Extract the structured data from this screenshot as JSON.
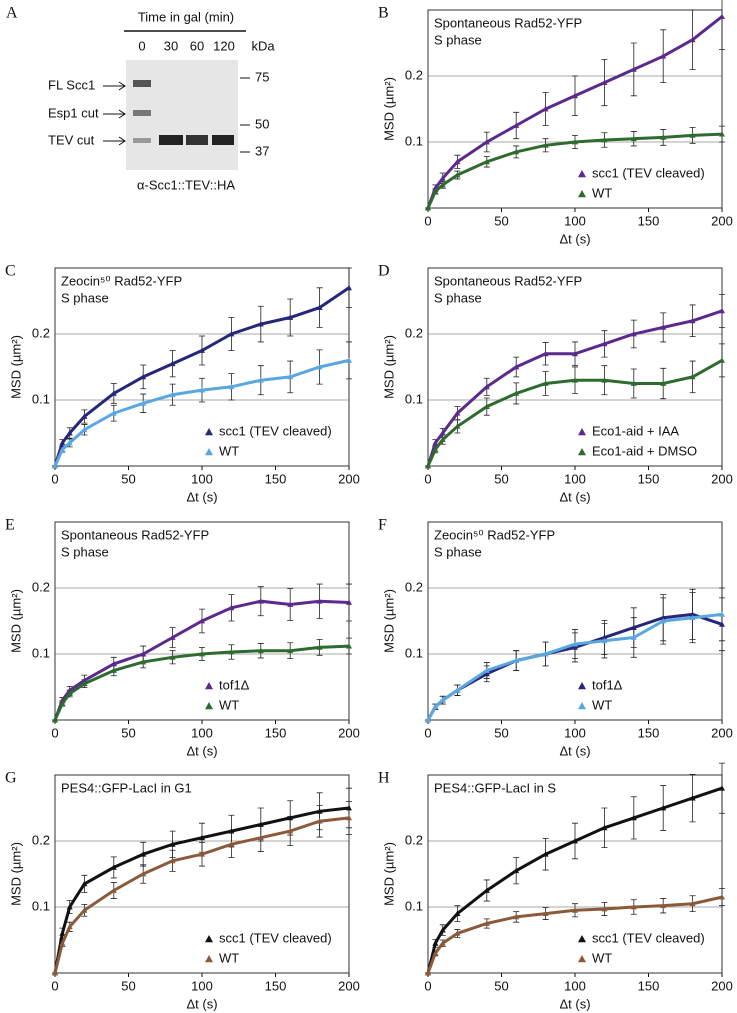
{
  "blot": {
    "panel": "A",
    "title": "Time in gal (min)",
    "lanes": [
      "0",
      "30",
      "60",
      "120"
    ],
    "unit": "kDa",
    "markers": [
      "75",
      "50",
      "37"
    ],
    "bands": [
      "FL Scc1",
      "Esp1 cut",
      "TEV cut"
    ],
    "caption": "α-Scc1::TEV::HA"
  },
  "chart_data": [
    {
      "type": "line",
      "panel": "B",
      "title": "Spontaneous Rad52-YFP",
      "subtitle": "S phase",
      "x_label": "Δt (s)",
      "y_label": "MSD (µm²)",
      "x": [
        0,
        5,
        10,
        20,
        40,
        60,
        80,
        100,
        120,
        140,
        160,
        180,
        200
      ],
      "xlim": [
        0,
        200
      ],
      "xticks": [
        0,
        50,
        100,
        150,
        200
      ],
      "ylim": [
        0,
        0.3
      ],
      "yticks": [
        0.1,
        0.2
      ],
      "grid": true,
      "legend": "lower right",
      "series": [
        {
          "name": "scc1 (TEV cleaved)",
          "color": "#5b2a8c",
          "values": [
            0,
            0.03,
            0.045,
            0.07,
            0.1,
            0.125,
            0.15,
            0.17,
            0.19,
            0.21,
            0.23,
            0.255,
            0.29
          ],
          "errors": [
            0,
            0.005,
            0.008,
            0.01,
            0.015,
            0.02,
            0.025,
            0.03,
            0.035,
            0.04,
            0.04,
            0.045,
            0.05
          ]
        },
        {
          "name": "WT",
          "color": "#2e6b2e",
          "values": [
            0,
            0.025,
            0.035,
            0.05,
            0.07,
            0.085,
            0.095,
            0.1,
            0.103,
            0.105,
            0.107,
            0.11,
            0.112
          ],
          "errors": [
            0,
            0.004,
            0.005,
            0.006,
            0.008,
            0.009,
            0.01,
            0.01,
            0.011,
            0.011,
            0.012,
            0.012,
            0.012
          ]
        }
      ]
    },
    {
      "type": "line",
      "panel": "C",
      "title": "Zeocin⁵⁰ Rad52-YFP",
      "subtitle": "S phase",
      "x_label": "Δt (s)",
      "y_label": "MSD (µm²)",
      "x": [
        0,
        5,
        10,
        20,
        40,
        60,
        80,
        100,
        120,
        140,
        160,
        180,
        200
      ],
      "xlim": [
        0,
        200
      ],
      "xticks": [
        0,
        50,
        100,
        150,
        200
      ],
      "ylim": [
        0,
        0.3
      ],
      "yticks": [
        0.1,
        0.2
      ],
      "grid": true,
      "legend": "lower right",
      "series": [
        {
          "name": "scc1 (TEV cleaved)",
          "color": "#26267a",
          "values": [
            0,
            0.035,
            0.05,
            0.075,
            0.11,
            0.135,
            0.155,
            0.175,
            0.2,
            0.215,
            0.225,
            0.24,
            0.27
          ],
          "errors": [
            0,
            0.005,
            0.008,
            0.01,
            0.015,
            0.018,
            0.02,
            0.022,
            0.025,
            0.027,
            0.028,
            0.03,
            0.03
          ]
        },
        {
          "name": "WT",
          "color": "#5aa7e0",
          "values": [
            0,
            0.025,
            0.035,
            0.055,
            0.08,
            0.095,
            0.108,
            0.115,
            0.12,
            0.13,
            0.135,
            0.15,
            0.16
          ],
          "errors": [
            0,
            0.004,
            0.006,
            0.008,
            0.012,
            0.014,
            0.016,
            0.018,
            0.02,
            0.022,
            0.024,
            0.026,
            0.028
          ]
        }
      ]
    },
    {
      "type": "line",
      "panel": "D",
      "title": "Spontaneous Rad52-YFP",
      "subtitle": "S phase",
      "x_label": "Δt (s)",
      "y_label": "MSD (µm²)",
      "x": [
        0,
        5,
        10,
        20,
        40,
        60,
        80,
        100,
        120,
        140,
        160,
        180,
        200
      ],
      "xlim": [
        0,
        200
      ],
      "xticks": [
        0,
        50,
        100,
        150,
        200
      ],
      "ylim": [
        0,
        0.3
      ],
      "yticks": [
        0.1,
        0.2
      ],
      "grid": true,
      "legend": "lower right",
      "series": [
        {
          "name": "Eco1-aid + IAA",
          "color": "#5b2a8c",
          "values": [
            0,
            0.035,
            0.05,
            0.08,
            0.12,
            0.15,
            0.17,
            0.17,
            0.185,
            0.2,
            0.21,
            0.22,
            0.235
          ],
          "errors": [
            0,
            0.005,
            0.007,
            0.01,
            0.013,
            0.015,
            0.017,
            0.018,
            0.02,
            0.021,
            0.022,
            0.024,
            0.025
          ]
        },
        {
          "name": "Eco1-aid + DMSO",
          "color": "#2e6b2e",
          "values": [
            0,
            0.025,
            0.04,
            0.06,
            0.09,
            0.11,
            0.125,
            0.13,
            0.13,
            0.125,
            0.125,
            0.135,
            0.16
          ],
          "errors": [
            0,
            0.005,
            0.007,
            0.01,
            0.013,
            0.016,
            0.018,
            0.02,
            0.022,
            0.022,
            0.023,
            0.024,
            0.025
          ]
        }
      ]
    },
    {
      "type": "line",
      "panel": "E",
      "title": "Spontaneous Rad52-YFP",
      "subtitle": "S phase",
      "x_label": "Δt (s)",
      "y_label": "MSD (µm²)",
      "x": [
        0,
        5,
        10,
        20,
        40,
        60,
        80,
        100,
        120,
        140,
        160,
        180,
        200
      ],
      "xlim": [
        0,
        200
      ],
      "xticks": [
        0,
        50,
        100,
        150,
        200
      ],
      "ylim": [
        0,
        0.3
      ],
      "yticks": [
        0.1,
        0.2
      ],
      "grid": true,
      "legend": "lower right",
      "series": [
        {
          "name": "tof1Δ",
          "color": "#5b2a8c",
          "values": [
            0,
            0.03,
            0.045,
            0.06,
            0.085,
            0.1,
            0.125,
            0.15,
            0.17,
            0.18,
            0.175,
            0.18,
            0.178
          ],
          "errors": [
            0,
            0.004,
            0.006,
            0.008,
            0.01,
            0.012,
            0.015,
            0.018,
            0.02,
            0.022,
            0.024,
            0.026,
            0.028
          ]
        },
        {
          "name": "WT",
          "color": "#2e6b2e",
          "values": [
            0,
            0.025,
            0.04,
            0.055,
            0.075,
            0.088,
            0.095,
            0.1,
            0.103,
            0.105,
            0.105,
            0.11,
            0.112
          ],
          "errors": [
            0,
            0.004,
            0.005,
            0.006,
            0.008,
            0.009,
            0.01,
            0.01,
            0.011,
            0.011,
            0.012,
            0.012,
            0.012
          ]
        }
      ]
    },
    {
      "type": "line",
      "panel": "F",
      "title": "Zeocin⁵⁰ Rad52-YFP",
      "subtitle": "S phase",
      "x_label": "Δt (s)",
      "y_label": "MSD (µm²)",
      "x": [
        0,
        5,
        10,
        20,
        40,
        60,
        80,
        100,
        120,
        140,
        160,
        180,
        200
      ],
      "xlim": [
        0,
        200
      ],
      "xticks": [
        0,
        50,
        100,
        150,
        200
      ],
      "ylim": [
        0,
        0.3
      ],
      "yticks": [
        0.1,
        0.2
      ],
      "grid": true,
      "legend": "lower right",
      "series": [
        {
          "name": "tof1Δ",
          "color": "#26267a",
          "values": [
            0,
            0.02,
            0.03,
            0.045,
            0.07,
            0.09,
            0.1,
            0.11,
            0.125,
            0.14,
            0.155,
            0.16,
            0.145
          ],
          "errors": [
            0,
            0.004,
            0.006,
            0.008,
            0.012,
            0.015,
            0.018,
            0.022,
            0.026,
            0.03,
            0.035,
            0.038,
            0.04
          ]
        },
        {
          "name": "WT",
          "color": "#5aa7e0",
          "values": [
            0,
            0.02,
            0.03,
            0.045,
            0.075,
            0.09,
            0.1,
            0.115,
            0.12,
            0.125,
            0.15,
            0.155,
            0.16
          ],
          "errors": [
            0,
            0.004,
            0.006,
            0.008,
            0.012,
            0.015,
            0.018,
            0.022,
            0.026,
            0.03,
            0.035,
            0.038,
            0.04
          ]
        }
      ]
    },
    {
      "type": "line",
      "panel": "G",
      "title": "PES4::GFP-LacI in G1",
      "x_label": "Δt (s)",
      "y_label": "MSD (µm²)",
      "x": [
        0,
        5,
        10,
        20,
        40,
        60,
        80,
        100,
        120,
        140,
        160,
        180,
        200
      ],
      "xlim": [
        0,
        200
      ],
      "xticks": [
        0,
        50,
        100,
        150,
        200
      ],
      "ylim": [
        0,
        0.3
      ],
      "yticks": [
        0.1,
        0.2
      ],
      "grid": true,
      "legend": "lower right",
      "series": [
        {
          "name": "scc1 (TEV cleaved)",
          "color": "#111111",
          "values": [
            0,
            0.06,
            0.1,
            0.135,
            0.16,
            0.18,
            0.195,
            0.205,
            0.215,
            0.225,
            0.235,
            0.245,
            0.25
          ],
          "errors": [
            0,
            0.008,
            0.01,
            0.013,
            0.016,
            0.018,
            0.02,
            0.022,
            0.024,
            0.025,
            0.026,
            0.028,
            0.03
          ]
        },
        {
          "name": "WT",
          "color": "#8a5a3a",
          "values": [
            0,
            0.045,
            0.07,
            0.095,
            0.125,
            0.15,
            0.17,
            0.18,
            0.195,
            0.205,
            0.215,
            0.23,
            0.235
          ],
          "errors": [
            0,
            0.005,
            0.007,
            0.009,
            0.012,
            0.014,
            0.016,
            0.018,
            0.02,
            0.021,
            0.022,
            0.024,
            0.025
          ]
        }
      ]
    },
    {
      "type": "line",
      "panel": "H",
      "title": "PES4::GFP-LacI in S",
      "x_label": "Δt (s)",
      "y_label": "MSD (µm²)",
      "x": [
        0,
        5,
        10,
        20,
        40,
        60,
        80,
        100,
        120,
        140,
        160,
        180,
        200
      ],
      "xlim": [
        0,
        200
      ],
      "xticks": [
        0,
        50,
        100,
        150,
        200
      ],
      "ylim": [
        0,
        0.3
      ],
      "yticks": [
        0.1,
        0.2
      ],
      "grid": true,
      "legend": "lower right",
      "series": [
        {
          "name": "scc1 (TEV cleaved)",
          "color": "#111111",
          "values": [
            0,
            0.045,
            0.065,
            0.09,
            0.125,
            0.155,
            0.18,
            0.2,
            0.22,
            0.235,
            0.25,
            0.265,
            0.28
          ],
          "errors": [
            0,
            0.006,
            0.008,
            0.012,
            0.016,
            0.02,
            0.024,
            0.027,
            0.03,
            0.032,
            0.034,
            0.036,
            0.038
          ]
        },
        {
          "name": "WT",
          "color": "#8a5a3a",
          "values": [
            0,
            0.03,
            0.045,
            0.06,
            0.075,
            0.085,
            0.09,
            0.095,
            0.097,
            0.1,
            0.102,
            0.105,
            0.115
          ],
          "errors": [
            0,
            0.004,
            0.005,
            0.006,
            0.007,
            0.008,
            0.009,
            0.01,
            0.01,
            0.011,
            0.011,
            0.012,
            0.013
          ]
        }
      ]
    }
  ]
}
